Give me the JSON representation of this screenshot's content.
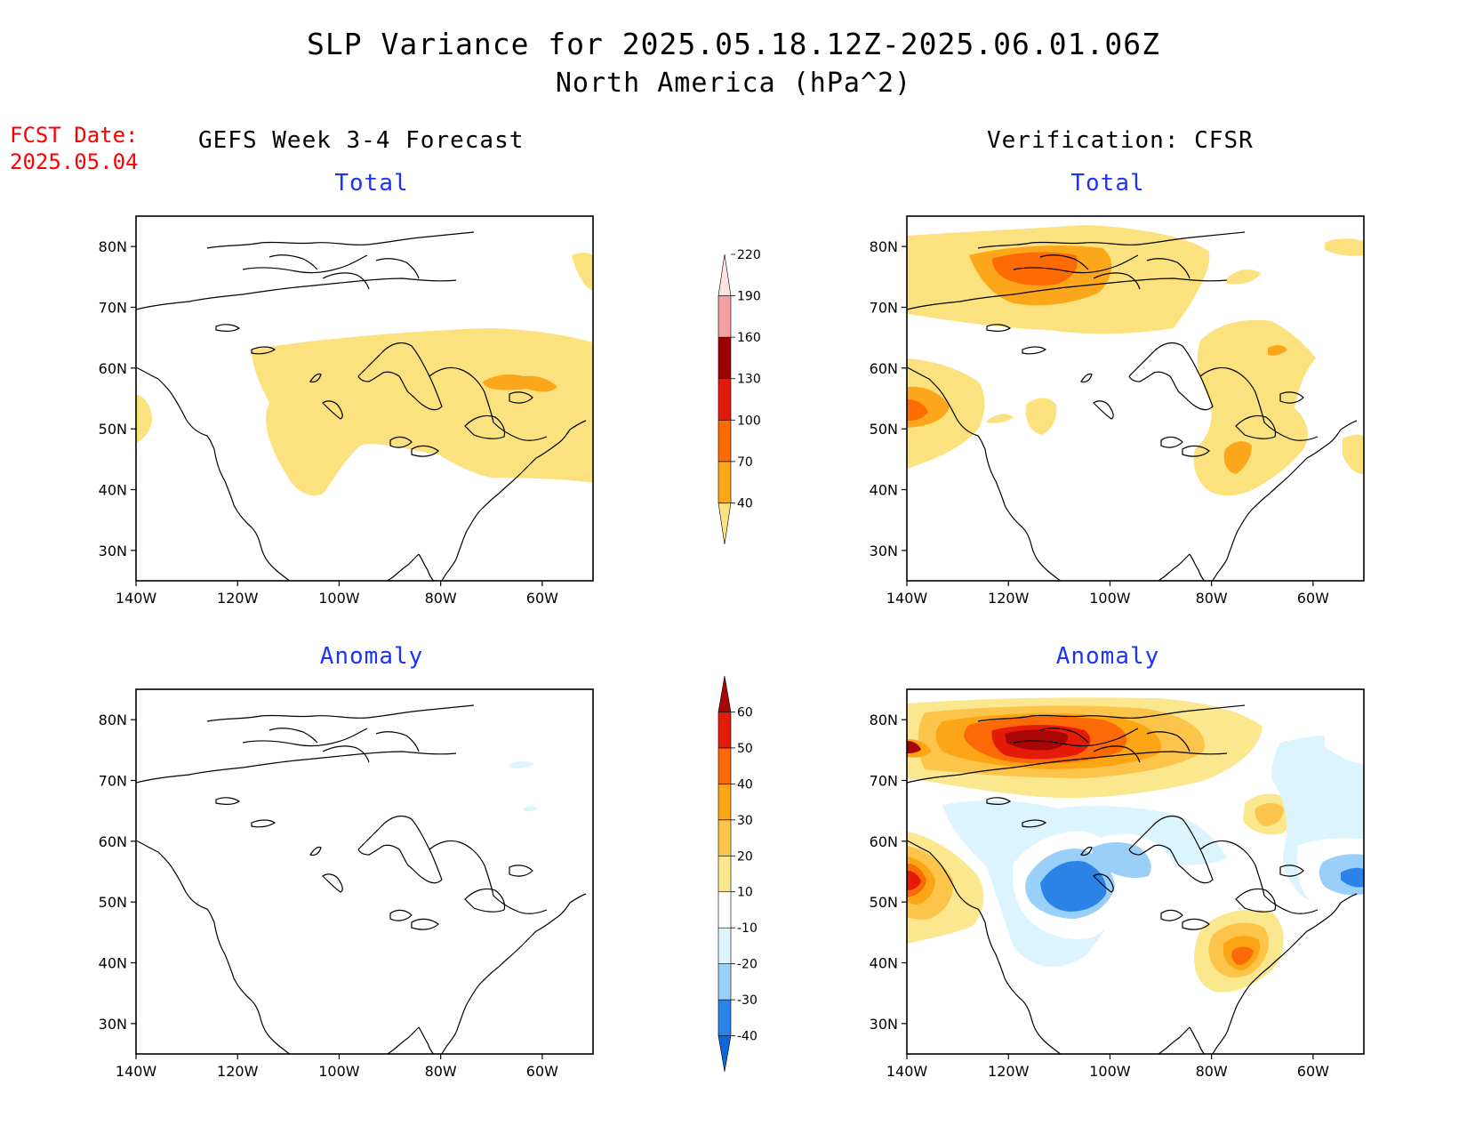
{
  "header": {
    "title_line1": "SLP Variance for 2025.05.18.12Z-2025.06.01.06Z",
    "title_line2": "North America (hPa^2)",
    "fcst_label": "FCST Date:",
    "fcst_date": "2025.05.04",
    "left_column_title": "GEFS Week 3-4 Forecast",
    "right_column_title": "Verification: CFSR"
  },
  "panels": {
    "forecast_total": {
      "title": "Total"
    },
    "verification_total": {
      "title": "Total"
    },
    "forecast_anomaly": {
      "title": "Anomaly"
    },
    "verification_anomaly": {
      "title": "Anomaly"
    }
  },
  "axes": {
    "lat_labels": [
      "80N",
      "70N",
      "60N",
      "50N",
      "40N",
      "30N"
    ],
    "lon_labels": [
      "140W",
      "120W",
      "100W",
      "80W",
      "60W"
    ],
    "lat_range": [
      25,
      85
    ],
    "lon_range": [
      -140,
      -50
    ]
  },
  "colorbars": {
    "total": {
      "labels": [
        "40",
        "70",
        "100",
        "130",
        "160",
        "190",
        "220"
      ],
      "colors": [
        "#fbe27e",
        "#fca71b",
        "#fe6a03",
        "#e31a0b",
        "#9c0000",
        "#f4a0a0",
        "#fde4e4"
      ]
    },
    "anomaly": {
      "labels": [
        "-40",
        "-30",
        "-20",
        "-10",
        "10",
        "20",
        "30",
        "40",
        "50",
        "60"
      ],
      "colors": [
        "#0f66d8",
        "#2b83e8",
        "#9ad0f7",
        "#dcf4fd",
        "#ffffff",
        "#fbe78e",
        "#fcc44a",
        "#fca515",
        "#fb6a07",
        "#e51b09",
        "#a80606"
      ]
    }
  }
}
